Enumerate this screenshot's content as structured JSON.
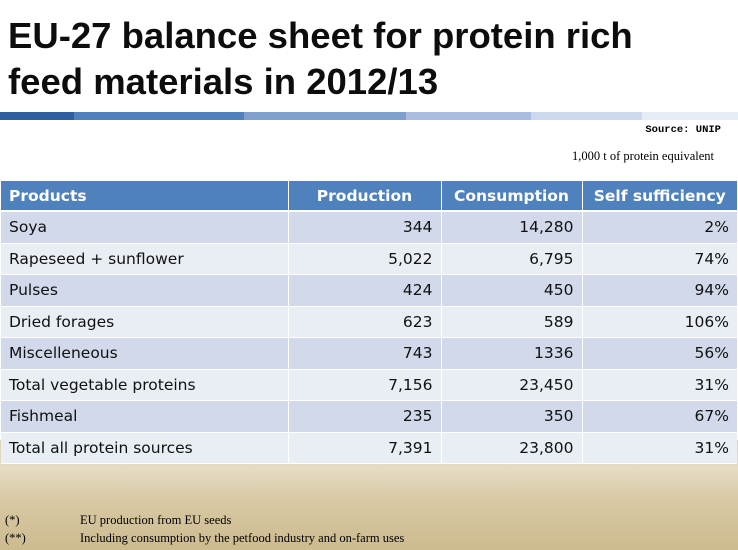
{
  "title": {
    "line1": "EU-27 balance sheet for protein rich",
    "line2": "feed materials in 2012/13"
  },
  "source": "Source: UNIP",
  "unit_note": "1,000 t  of protein equivalent",
  "colors": {
    "header_blue": "#4f81bd",
    "row_dark": "#d1d9ea",
    "row_light": "#e9edf4",
    "band": [
      "#2f5f9e",
      "#4f81bd",
      "#7f9fcc",
      "#a9bde0",
      "#ccd8ee",
      "#e6ecf6"
    ]
  },
  "table": {
    "headers": [
      "Products",
      "Production",
      "Consumption",
      "Self sufficiency"
    ],
    "rows": [
      [
        "Soya",
        "344",
        "14,280",
        "2%"
      ],
      [
        "Rapeseed + sunflower",
        "5,022",
        "6,795",
        "74%"
      ],
      [
        "Pulses",
        "424",
        "450",
        "94%"
      ],
      [
        "Dried forages",
        "623",
        "589",
        "106%"
      ],
      [
        "Miscelleneous",
        "743",
        "1336",
        "56%"
      ],
      [
        "Total vegetable proteins",
        "7,156",
        "23,450",
        "31%"
      ],
      [
        "Fishmeal",
        "235",
        "350",
        "67%"
      ],
      [
        "Total all protein sources",
        "7,391",
        "23,800",
        "31%"
      ]
    ]
  },
  "footnotes": [
    {
      "mark": "(*)",
      "text": "EU production from EU seeds"
    },
    {
      "mark": "(**)",
      "text": "Including consumption by the petfood industry and on-farm uses"
    }
  ]
}
